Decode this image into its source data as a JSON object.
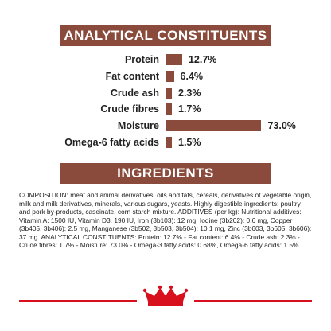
{
  "analytical": {
    "title": "ANALYTICAL CONSTITUENTS",
    "colors": {
      "bar": "#8a4b3c",
      "text": "#222222"
    },
    "rows": [
      {
        "label": "Protein",
        "value": "12.7%",
        "percent": 12.7
      },
      {
        "label": "Fat content",
        "value": "6.4%",
        "percent": 6.4
      },
      {
        "label": "Crude ash",
        "value": "2.3%",
        "percent": 2.3
      },
      {
        "label": "Crude fibres",
        "value": "1.7%",
        "percent": 1.7
      },
      {
        "label": "Moisture",
        "value": "73.0%",
        "percent": 73.0
      },
      {
        "label": "Omega-6 fatty acids",
        "value": "1.5%",
        "percent": 1.5
      }
    ]
  },
  "ingredients": {
    "title": "INGREDIENTS",
    "text": "COMPOSITION: meat and animal derivatives, oils and fats, cereals, derivatives of vegetable origin, milk and milk derivatives, minerals, various sugars, yeasts. Highly digestible ingredients: poultry and pork by-products, caseinate, corn starch mixture. ADDITIVES (per kg): Nutritional additives: Vitamin A: 1500 IU, Vitamin D3: 190 IU, Iron (3b103): 12 mg, Iodine (3b202): 0.6 mg, Copper (3b405, 3b406): 2.5 mg, Manganese (3b502, 3b503, 3b504): 10.1 mg, Zinc (3b603, 3b605, 3b606): 37 mg. ANALYTICAL CONSTITUENTS: Protein: 12.7% - Fat content: 6.4% - Crude ash: 2.3% - Crude fibres: 1.7% - Moisture: 73.0% - Omega-3 fatty acids: 0.68%, Omega-6 fatty acids: 1.5%."
  },
  "footer": {
    "logo_icon": "crown-icon",
    "accent_color": "#d8101d"
  }
}
